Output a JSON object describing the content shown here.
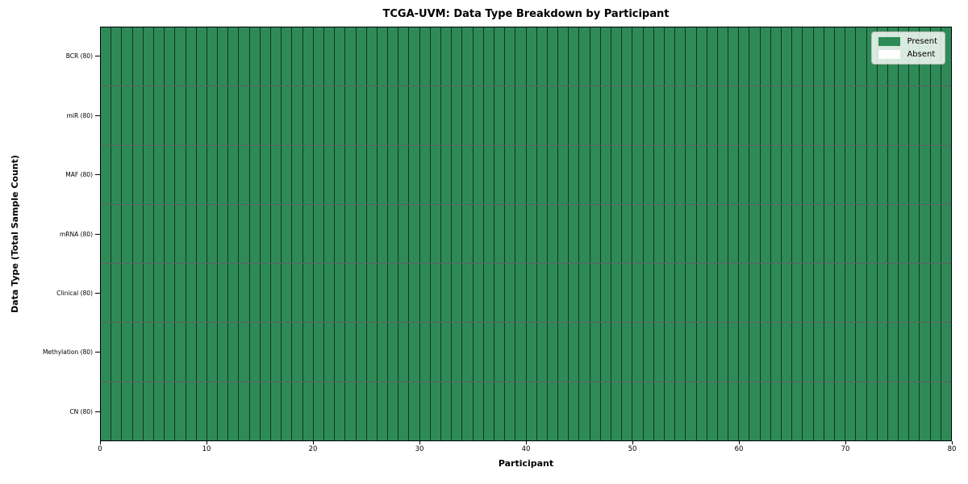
{
  "chart_data": {
    "type": "heatmap",
    "title": "TCGA-UVM: Data Type Breakdown by Participant",
    "xlabel": "Participant",
    "ylabel": "Data Type (Total Sample Count)",
    "categories": [
      "BCR (80)",
      "miR (80)",
      "MAF (80)",
      "mRNA (80)",
      "Clinical (80)",
      "Methylation (80)",
      "CN (80)"
    ],
    "n_participants": 80,
    "x_axis": {
      "min": 0,
      "max": 80,
      "ticks": [
        0,
        10,
        20,
        30,
        40,
        50,
        60,
        70,
        80
      ]
    },
    "series": [
      {
        "name": "BCR (80)",
        "present_count": 80,
        "absent_count": 0
      },
      {
        "name": "miR (80)",
        "present_count": 80,
        "absent_count": 0
      },
      {
        "name": "MAF (80)",
        "present_count": 80,
        "absent_count": 0
      },
      {
        "name": "mRNA (80)",
        "present_count": 80,
        "absent_count": 0
      },
      {
        "name": "Clinical (80)",
        "present_count": 80,
        "absent_count": 0
      },
      {
        "name": "Methylation (80)",
        "present_count": 80,
        "absent_count": 0
      },
      {
        "name": "CN (80)",
        "present_count": 80,
        "absent_count": 0
      }
    ],
    "legend": {
      "position": "upper right",
      "entries": [
        {
          "label": "Present",
          "color": "#2e8b57"
        },
        {
          "label": "Absent",
          "color": "#ffffff"
        }
      ]
    },
    "colors": {
      "present": "#2e8b57",
      "absent": "#ffffff",
      "cell_edge": "rgba(0,0,0,0.62)",
      "plot_border": "#000000"
    },
    "cell_borders": true,
    "grid": false
  }
}
